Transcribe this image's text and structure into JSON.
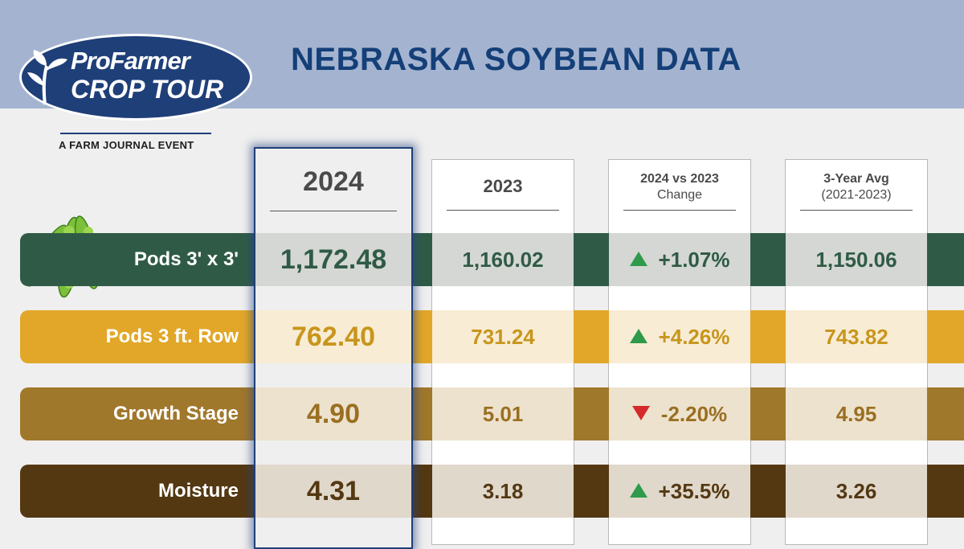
{
  "header": {
    "title": "NEBRASKA SOYBEAN DATA",
    "logo_line1": "ProFarmer",
    "logo_line2": "CROP TOUR",
    "logo_sub": "A FARM JOURNAL EVENT"
  },
  "columns": {
    "year_2024": "2024",
    "year_2023": "2023",
    "change_title": "2024 vs 2023",
    "change_sub": "Change",
    "avg_title": "3-Year Avg",
    "avg_sub": "(2021-2023)"
  },
  "colors": {
    "top_band": "#a4b4d0",
    "title": "#143f78",
    "up_arrow": "#2e9a4a",
    "down_arrow": "#d42a2a"
  },
  "chart_data": {
    "type": "table",
    "title": "NEBRASKA SOYBEAN DATA",
    "columns": [
      "2024",
      "2023",
      "2024 vs 2023 Change",
      "3-Year Avg (2021-2023)"
    ],
    "rows": [
      {
        "label": "Pods 3' x 3'",
        "v2024": "1,172.48",
        "v2023": "1,160.02",
        "change": "+1.07%",
        "direction": "up",
        "avg": "1,150.06",
        "band": "#2f5b46",
        "light": "#d5d7d4",
        "text": "#2f5b46"
      },
      {
        "label": "Pods 3 ft. Row",
        "v2024": "762.40",
        "v2023": "731.24",
        "change": "+4.26%",
        "direction": "up",
        "avg": "743.82",
        "band": "#e2a728",
        "light": "#f8ecd4",
        "text": "#c8961c"
      },
      {
        "label": "Growth Stage",
        "v2024": "4.90",
        "v2023": "5.01",
        "change": "-2.20%",
        "direction": "down",
        "avg": "4.95",
        "band": "#a0782c",
        "light": "#ede2cd",
        "text": "#9a6f22"
      },
      {
        "label": "Moisture",
        "v2024": "4.31",
        "v2023": "3.18",
        "change": "+35.5%",
        "direction": "up",
        "avg": "3.26",
        "band": "#533812",
        "light": "#e0d8cb",
        "text": "#533812"
      }
    ]
  }
}
